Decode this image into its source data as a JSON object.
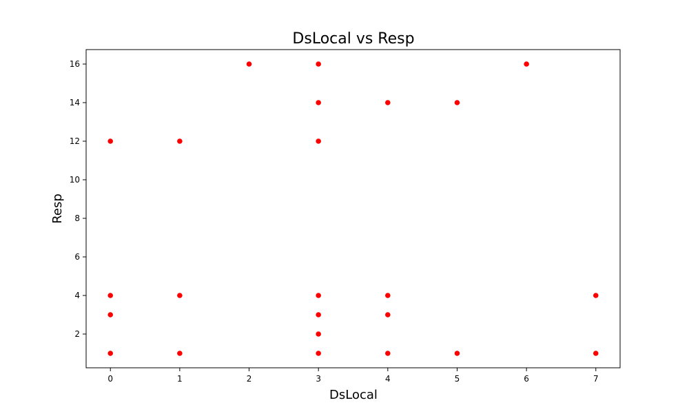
{
  "chart_data": {
    "type": "scatter",
    "title": "DsLocal vs Resp",
    "xlabel": "DsLocal",
    "ylabel": "Resp",
    "xlim": [
      -0.35,
      7.35
    ],
    "ylim": [
      0.25,
      16.75
    ],
    "xticks": [
      0,
      1,
      2,
      3,
      4,
      5,
      6,
      7
    ],
    "yticks": [
      2,
      4,
      6,
      8,
      10,
      12,
      14,
      16
    ],
    "grid": false,
    "marker_color": "#ff0000",
    "marker_edge_color": "#ffffff",
    "points": [
      {
        "x": 0,
        "y": 12
      },
      {
        "x": 0,
        "y": 4
      },
      {
        "x": 0,
        "y": 3
      },
      {
        "x": 0,
        "y": 1
      },
      {
        "x": 1,
        "y": 12
      },
      {
        "x": 1,
        "y": 4
      },
      {
        "x": 1,
        "y": 1
      },
      {
        "x": 2,
        "y": 16
      },
      {
        "x": 3,
        "y": 16
      },
      {
        "x": 3,
        "y": 14
      },
      {
        "x": 3,
        "y": 12
      },
      {
        "x": 3,
        "y": 4
      },
      {
        "x": 3,
        "y": 3
      },
      {
        "x": 3,
        "y": 2
      },
      {
        "x": 3,
        "y": 1
      },
      {
        "x": 4,
        "y": 14
      },
      {
        "x": 4,
        "y": 4
      },
      {
        "x": 4,
        "y": 3
      },
      {
        "x": 4,
        "y": 1
      },
      {
        "x": 5,
        "y": 14
      },
      {
        "x": 5,
        "y": 1
      },
      {
        "x": 6,
        "y": 16
      },
      {
        "x": 7,
        "y": 4
      },
      {
        "x": 7,
        "y": 1
      }
    ]
  }
}
